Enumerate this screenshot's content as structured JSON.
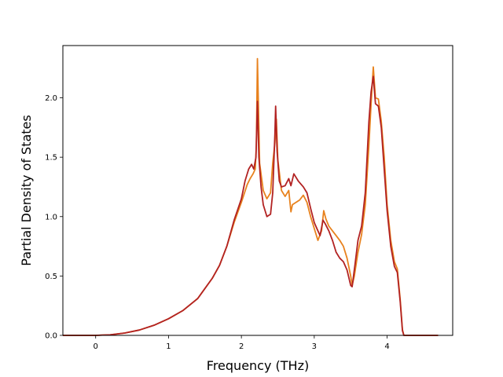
{
  "chart_data": {
    "type": "line",
    "title": "",
    "xlabel": "Frequency (THz)",
    "ylabel": "Partial Density of States",
    "xlim": [
      -0.45,
      4.9
    ],
    "ylim": [
      0.0,
      2.44
    ],
    "x_ticks": [
      0,
      1,
      2,
      3,
      4
    ],
    "x_tick_labels": [
      "0",
      "1",
      "2",
      "3",
      "4"
    ],
    "y_ticks": [
      0.0,
      0.5,
      1.0,
      1.5,
      2.0
    ],
    "y_tick_labels": [
      "0.0",
      "0.5",
      "1.0",
      "1.5",
      "2.0"
    ],
    "grid": false,
    "legend": "none",
    "series": [
      {
        "color": "#e8821e",
        "points": [
          [
            -0.45,
            0.0
          ],
          [
            0.0,
            0.0
          ],
          [
            0.2,
            0.005
          ],
          [
            0.4,
            0.02
          ],
          [
            0.6,
            0.045
          ],
          [
            0.8,
            0.085
          ],
          [
            1.0,
            0.14
          ],
          [
            1.2,
            0.21
          ],
          [
            1.4,
            0.31
          ],
          [
            1.6,
            0.48
          ],
          [
            1.7,
            0.59
          ],
          [
            1.8,
            0.75
          ],
          [
            1.9,
            0.95
          ],
          [
            2.0,
            1.12
          ],
          [
            2.08,
            1.27
          ],
          [
            2.12,
            1.32
          ],
          [
            2.16,
            1.36
          ],
          [
            2.19,
            1.4
          ],
          [
            2.205,
            1.6
          ],
          [
            2.22,
            2.33
          ],
          [
            2.235,
            1.9
          ],
          [
            2.25,
            1.45
          ],
          [
            2.3,
            1.22
          ],
          [
            2.35,
            1.15
          ],
          [
            2.4,
            1.2
          ],
          [
            2.43,
            1.45
          ],
          [
            2.46,
            1.62
          ],
          [
            2.48,
            1.82
          ],
          [
            2.5,
            1.48
          ],
          [
            2.55,
            1.22
          ],
          [
            2.6,
            1.17
          ],
          [
            2.65,
            1.22
          ],
          [
            2.68,
            1.04
          ],
          [
            2.7,
            1.1
          ],
          [
            2.75,
            1.12
          ],
          [
            2.8,
            1.14
          ],
          [
            2.85,
            1.18
          ],
          [
            2.9,
            1.12
          ],
          [
            2.95,
            1.0
          ],
          [
            3.0,
            0.9
          ],
          [
            3.05,
            0.8
          ],
          [
            3.1,
            0.88
          ],
          [
            3.13,
            1.05
          ],
          [
            3.16,
            0.98
          ],
          [
            3.2,
            0.92
          ],
          [
            3.25,
            0.88
          ],
          [
            3.3,
            0.84
          ],
          [
            3.35,
            0.8
          ],
          [
            3.4,
            0.75
          ],
          [
            3.45,
            0.65
          ],
          [
            3.5,
            0.5
          ],
          [
            3.52,
            0.42
          ],
          [
            3.55,
            0.5
          ],
          [
            3.6,
            0.7
          ],
          [
            3.65,
            0.85
          ],
          [
            3.7,
            1.1
          ],
          [
            3.75,
            1.6
          ],
          [
            3.78,
            1.95
          ],
          [
            3.81,
            2.26
          ],
          [
            3.84,
            2.0
          ],
          [
            3.88,
            1.99
          ],
          [
            3.92,
            1.8
          ],
          [
            3.96,
            1.5
          ],
          [
            4.0,
            1.1
          ],
          [
            4.05,
            0.8
          ],
          [
            4.1,
            0.62
          ],
          [
            4.14,
            0.56
          ],
          [
            4.18,
            0.3
          ],
          [
            4.21,
            0.05
          ],
          [
            4.23,
            0.0
          ],
          [
            4.7,
            0.0
          ]
        ]
      },
      {
        "color": "#b22222",
        "points": [
          [
            -0.45,
            0.0
          ],
          [
            0.0,
            0.0
          ],
          [
            0.2,
            0.005
          ],
          [
            0.4,
            0.02
          ],
          [
            0.6,
            0.045
          ],
          [
            0.8,
            0.085
          ],
          [
            1.0,
            0.14
          ],
          [
            1.2,
            0.21
          ],
          [
            1.4,
            0.31
          ],
          [
            1.6,
            0.48
          ],
          [
            1.7,
            0.59
          ],
          [
            1.8,
            0.75
          ],
          [
            1.9,
            0.97
          ],
          [
            2.0,
            1.15
          ],
          [
            2.05,
            1.3
          ],
          [
            2.1,
            1.4
          ],
          [
            2.14,
            1.44
          ],
          [
            2.17,
            1.4
          ],
          [
            2.2,
            1.5
          ],
          [
            2.22,
            1.97
          ],
          [
            2.24,
            1.5
          ],
          [
            2.27,
            1.25
          ],
          [
            2.3,
            1.1
          ],
          [
            2.35,
            1.0
          ],
          [
            2.4,
            1.02
          ],
          [
            2.43,
            1.2
          ],
          [
            2.46,
            1.7
          ],
          [
            2.47,
            1.93
          ],
          [
            2.49,
            1.55
          ],
          [
            2.52,
            1.3
          ],
          [
            2.55,
            1.25
          ],
          [
            2.6,
            1.26
          ],
          [
            2.65,
            1.32
          ],
          [
            2.68,
            1.26
          ],
          [
            2.72,
            1.36
          ],
          [
            2.78,
            1.3
          ],
          [
            2.85,
            1.25
          ],
          [
            2.9,
            1.2
          ],
          [
            2.95,
            1.07
          ],
          [
            3.0,
            0.95
          ],
          [
            3.05,
            0.88
          ],
          [
            3.08,
            0.84
          ],
          [
            3.12,
            0.97
          ],
          [
            3.15,
            0.94
          ],
          [
            3.2,
            0.88
          ],
          [
            3.25,
            0.8
          ],
          [
            3.3,
            0.7
          ],
          [
            3.35,
            0.65
          ],
          [
            3.4,
            0.62
          ],
          [
            3.45,
            0.55
          ],
          [
            3.5,
            0.42
          ],
          [
            3.52,
            0.41
          ],
          [
            3.56,
            0.6
          ],
          [
            3.6,
            0.8
          ],
          [
            3.65,
            0.92
          ],
          [
            3.7,
            1.2
          ],
          [
            3.75,
            1.8
          ],
          [
            3.78,
            2.05
          ],
          [
            3.81,
            2.18
          ],
          [
            3.84,
            1.95
          ],
          [
            3.88,
            1.93
          ],
          [
            3.92,
            1.75
          ],
          [
            3.96,
            1.4
          ],
          [
            4.0,
            1.05
          ],
          [
            4.05,
            0.75
          ],
          [
            4.1,
            0.58
          ],
          [
            4.14,
            0.53
          ],
          [
            4.18,
            0.28
          ],
          [
            4.21,
            0.04
          ],
          [
            4.23,
            0.0
          ],
          [
            4.7,
            0.0
          ]
        ]
      }
    ]
  }
}
